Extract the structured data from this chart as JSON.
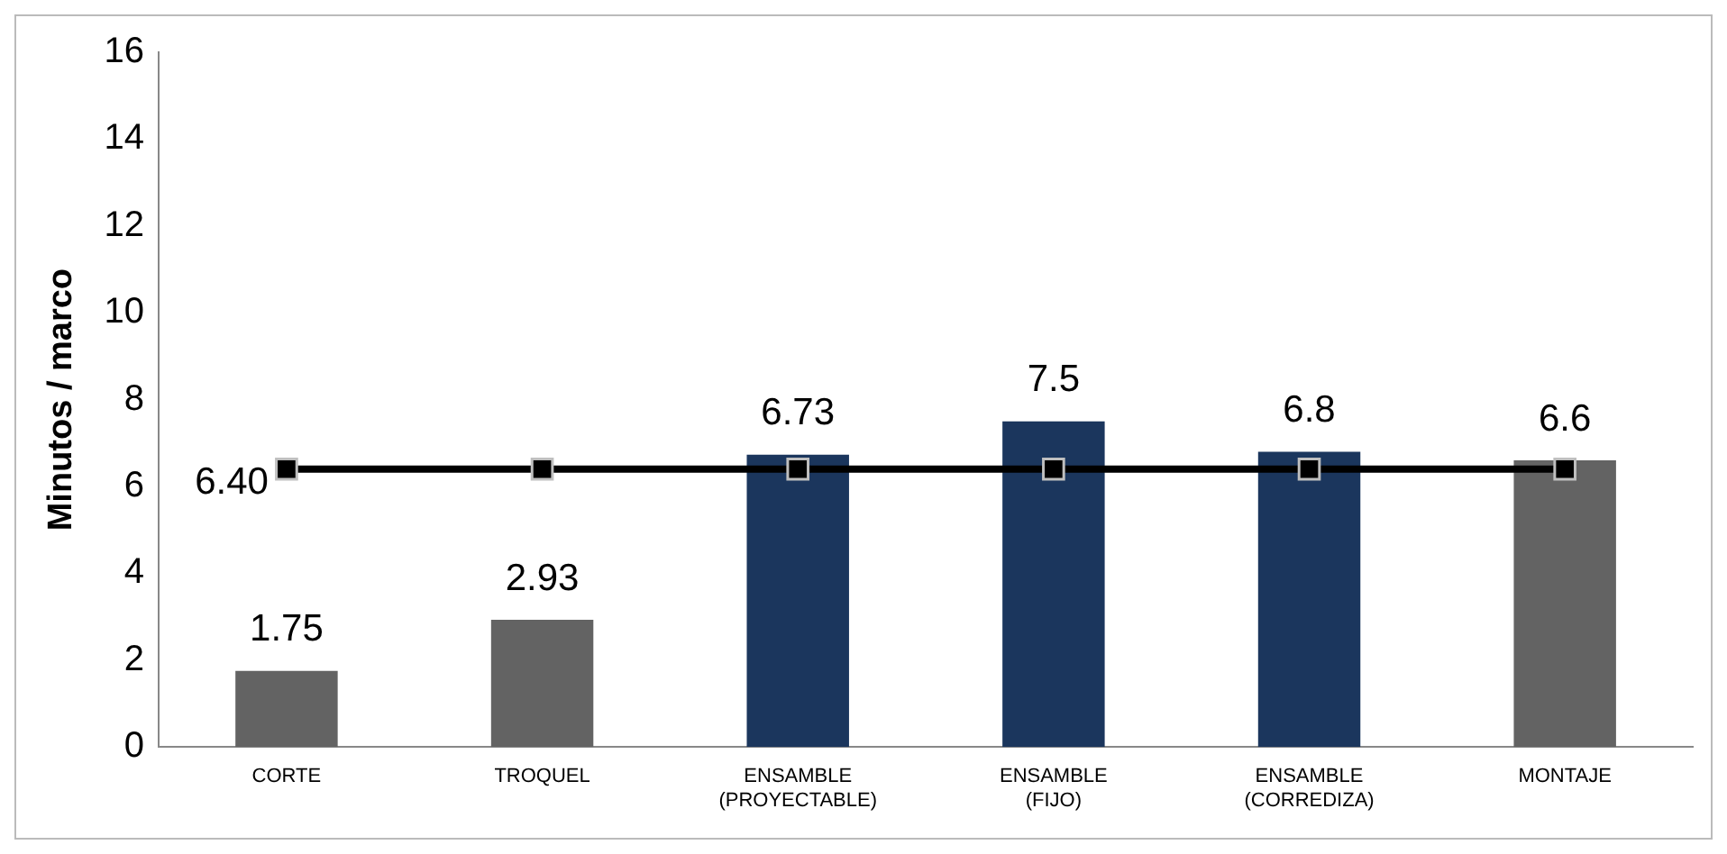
{
  "chart_data": {
    "type": "bar",
    "ylabel": "Minutos / marco",
    "categories": [
      "CORTE",
      "TROQUEL",
      "ENSAMBLE\n(PROYECTABLE)",
      "ENSAMBLE\n(FIJO)",
      "ENSAMBLE\n(CORREDIZA)",
      "MONTAJE"
    ],
    "series": [
      {
        "colors": [
          "#636363",
          "#636363",
          "#1b365d",
          "#1b365d",
          "#1b365d",
          "#636363"
        ],
        "values": [
          1.75,
          2.93,
          6.73,
          7.5,
          6.8,
          6.6
        ],
        "value_labels": [
          "1.75",
          "2.93",
          "6.73",
          "7.5",
          "6.8",
          "6.6"
        ]
      },
      {
        "type": "line",
        "color": "#000000",
        "values": [
          6.4,
          6.4,
          6.4,
          6.4,
          6.4,
          6.4
        ],
        "value_labels": [
          "6.40",
          null,
          null,
          null,
          null,
          null
        ]
      }
    ],
    "ylim": [
      0,
      16
    ],
    "yticks": [
      0,
      2,
      4,
      6,
      8,
      10,
      12,
      14,
      16
    ],
    "grid": false,
    "legend": false,
    "marker": "square",
    "line_style": "solid"
  }
}
